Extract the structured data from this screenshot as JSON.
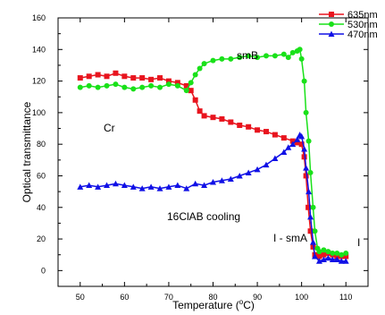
{
  "chart_data": {
    "type": "line",
    "xlabel_main": "Temperature (",
    "xlabel_sup": "o",
    "xlabel_tail": "C)",
    "ylabel": "Optical transmittance",
    "xlim": [
      45,
      115
    ],
    "ylim": [
      -10,
      160
    ],
    "xticks": [
      50,
      60,
      70,
      80,
      90,
      100,
      110
    ],
    "yticks": [
      0,
      20,
      40,
      60,
      80,
      100,
      120,
      140,
      160
    ],
    "grid": false,
    "legend_position": "top-right",
    "annotations": {
      "smB": "smB",
      "Cr": "Cr",
      "cooling": "16ClAB cooling",
      "ismA": "I - smA",
      "I": "I"
    },
    "series": [
      {
        "name": "635nm",
        "color": "#e8141e",
        "marker": "square",
        "points": [
          [
            50,
            122
          ],
          [
            52,
            123
          ],
          [
            54,
            124
          ],
          [
            56,
            123
          ],
          [
            58,
            125
          ],
          [
            60,
            123
          ],
          [
            62,
            122
          ],
          [
            64,
            122
          ],
          [
            66,
            121
          ],
          [
            68,
            122
          ],
          [
            70,
            120
          ],
          [
            72,
            119
          ],
          [
            74,
            117
          ],
          [
            75,
            114
          ],
          [
            76,
            108
          ],
          [
            77,
            101
          ],
          [
            78,
            98
          ],
          [
            80,
            97
          ],
          [
            82,
            96
          ],
          [
            84,
            94
          ],
          [
            86,
            92
          ],
          [
            88,
            91
          ],
          [
            90,
            89
          ],
          [
            92,
            88
          ],
          [
            94,
            86
          ],
          [
            96,
            84
          ],
          [
            98,
            82
          ],
          [
            99,
            81
          ],
          [
            100,
            80
          ],
          [
            100.6,
            72
          ],
          [
            101,
            60
          ],
          [
            101.5,
            40
          ],
          [
            102,
            25
          ],
          [
            102.6,
            15
          ],
          [
            103,
            10
          ],
          [
            104,
            9
          ],
          [
            105,
            10
          ],
          [
            106,
            11
          ],
          [
            107,
            10
          ],
          [
            108,
            9
          ],
          [
            109,
            9
          ],
          [
            110,
            9
          ]
        ]
      },
      {
        "name": "530nm",
        "color": "#19e119",
        "marker": "circle",
        "points": [
          [
            50,
            116
          ],
          [
            52,
            117
          ],
          [
            54,
            116
          ],
          [
            56,
            117
          ],
          [
            58,
            118
          ],
          [
            60,
            116
          ],
          [
            62,
            115
          ],
          [
            64,
            116
          ],
          [
            66,
            117
          ],
          [
            68,
            116
          ],
          [
            70,
            118
          ],
          [
            72,
            117
          ],
          [
            74,
            114
          ],
          [
            75,
            119
          ],
          [
            76,
            124
          ],
          [
            77,
            128
          ],
          [
            78,
            131
          ],
          [
            80,
            133
          ],
          [
            82,
            134
          ],
          [
            84,
            134
          ],
          [
            86,
            135
          ],
          [
            88,
            136
          ],
          [
            90,
            135
          ],
          [
            92,
            136
          ],
          [
            94,
            136
          ],
          [
            96,
            137
          ],
          [
            97,
            135
          ],
          [
            98,
            138
          ],
          [
            99,
            139
          ],
          [
            99.6,
            140
          ],
          [
            100,
            134
          ],
          [
            100.6,
            120
          ],
          [
            101,
            100
          ],
          [
            101.6,
            82
          ],
          [
            102,
            62
          ],
          [
            102.6,
            40
          ],
          [
            103,
            25
          ],
          [
            103.6,
            14
          ],
          [
            104,
            12
          ],
          [
            105,
            13
          ],
          [
            106,
            12
          ],
          [
            107,
            11
          ],
          [
            108,
            11
          ],
          [
            109,
            10
          ],
          [
            110,
            11
          ]
        ]
      },
      {
        "name": "470nm",
        "color": "#1010e6",
        "marker": "triangle",
        "points": [
          [
            50,
            53
          ],
          [
            52,
            54
          ],
          [
            54,
            53
          ],
          [
            56,
            54
          ],
          [
            58,
            55
          ],
          [
            60,
            54
          ],
          [
            62,
            53
          ],
          [
            64,
            52
          ],
          [
            66,
            53
          ],
          [
            68,
            52
          ],
          [
            70,
            53
          ],
          [
            72,
            54
          ],
          [
            74,
            52
          ],
          [
            76,
            55
          ],
          [
            78,
            54
          ],
          [
            80,
            56
          ],
          [
            82,
            57
          ],
          [
            84,
            58
          ],
          [
            86,
            60
          ],
          [
            88,
            62
          ],
          [
            90,
            64
          ],
          [
            92,
            67
          ],
          [
            94,
            71
          ],
          [
            96,
            75
          ],
          [
            97,
            78
          ],
          [
            98,
            80
          ],
          [
            99,
            83
          ],
          [
            99.6,
            86
          ],
          [
            100,
            85
          ],
          [
            100.6,
            77
          ],
          [
            101,
            65
          ],
          [
            101.6,
            50
          ],
          [
            102,
            34
          ],
          [
            102.6,
            18
          ],
          [
            103,
            9
          ],
          [
            104,
            6
          ],
          [
            105,
            7
          ],
          [
            106,
            8
          ],
          [
            107,
            7
          ],
          [
            108,
            7
          ],
          [
            109,
            6
          ],
          [
            110,
            6
          ]
        ]
      }
    ]
  }
}
